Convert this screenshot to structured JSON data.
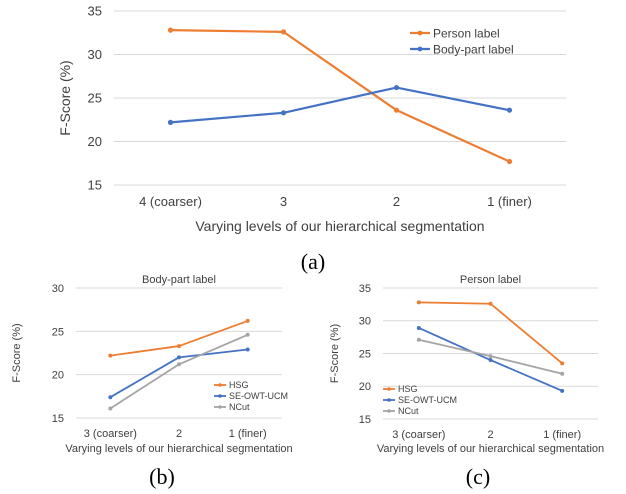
{
  "colors": {
    "orange": "#ed7d31",
    "blue": "#4472c4",
    "gray": "#a5a5a5",
    "grid": "#d9d9d9",
    "text": "#404040"
  },
  "chart_data": [
    {
      "type": "line",
      "caption": "(a)",
      "title": "",
      "xlabel": "Varying levels of our hierarchical segmentation",
      "ylabel": "F-Score (%)",
      "categories": [
        "4 (coarser)",
        "3",
        "2",
        "1 (finer)"
      ],
      "ylim": [
        15,
        35
      ],
      "yticks": [
        15,
        20,
        25,
        30,
        35
      ],
      "grid": true,
      "legend_position": "top-right",
      "series": [
        {
          "name": "Person label",
          "color": "#ed7d31",
          "values": [
            32.8,
            32.6,
            23.6,
            17.7
          ]
        },
        {
          "name": "Body-part label",
          "color": "#4472c4",
          "values": [
            22.2,
            23.3,
            26.2,
            23.6
          ]
        }
      ]
    },
    {
      "type": "line",
      "caption": "(b)",
      "title": "Body-part label",
      "xlabel": "Varying levels of our hierarchical segmentation",
      "ylabel": "F-Score (%)",
      "categories": [
        "3 (coarser)",
        "2",
        "1 (finer)"
      ],
      "ylim": [
        15,
        30
      ],
      "yticks": [
        15,
        20,
        25,
        30
      ],
      "grid": true,
      "legend_position": "bottom-right",
      "series": [
        {
          "name": "HSG",
          "color": "#ed7d31",
          "values": [
            22.2,
            23.3,
            26.2
          ]
        },
        {
          "name": "SE-OWT-UCM",
          "color": "#4472c4",
          "values": [
            17.4,
            22.0,
            22.9
          ]
        },
        {
          "name": "NCut",
          "color": "#a5a5a5",
          "values": [
            16.1,
            21.2,
            24.6
          ]
        }
      ]
    },
    {
      "type": "line",
      "caption": "(c)",
      "title": "Person label",
      "xlabel": "Varying levels of our hierarchical segmentation",
      "ylabel": "F-Score (%)",
      "categories": [
        "3 (coarser)",
        "2",
        "1 (finer)"
      ],
      "ylim": [
        15,
        35
      ],
      "yticks": [
        15,
        20,
        25,
        30,
        35
      ],
      "grid": true,
      "legend_position": "bottom-left",
      "series": [
        {
          "name": "HSG",
          "color": "#ed7d31",
          "values": [
            32.8,
            32.6,
            23.5
          ]
        },
        {
          "name": "SE-OWT-UCM",
          "color": "#4472c4",
          "values": [
            28.9,
            24.0,
            19.3
          ]
        },
        {
          "name": "NCut",
          "color": "#a5a5a5",
          "values": [
            27.1,
            24.6,
            21.9
          ]
        }
      ]
    }
  ]
}
